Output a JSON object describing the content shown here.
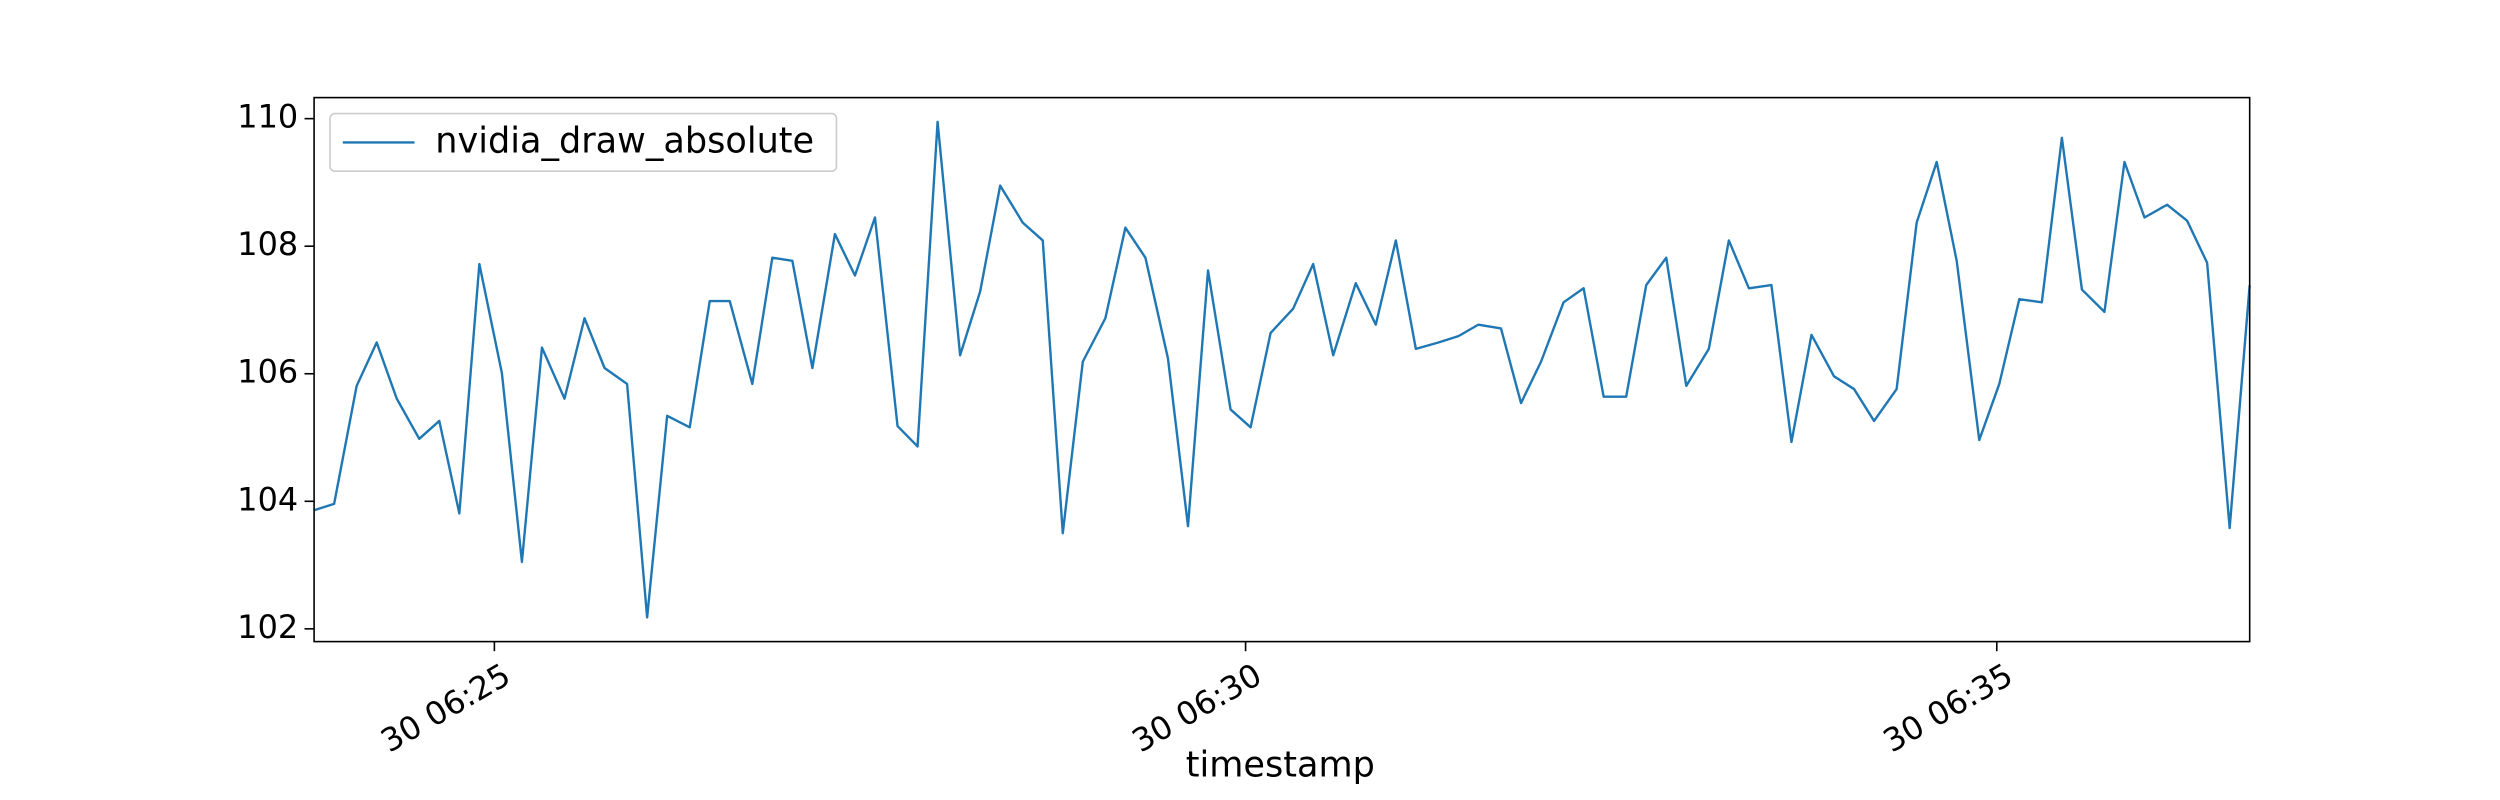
{
  "chart_data": {
    "type": "line",
    "xlabel": "timestamp",
    "x": [
      "30 06:23:48",
      "30 06:23:56",
      "30 06:24:05",
      "30 06:24:13",
      "30 06:24:21",
      "30 06:24:30",
      "30 06:24:38",
      "30 06:24:46",
      "30 06:24:54",
      "30 06:25:03",
      "30 06:25:11",
      "30 06:25:19",
      "30 06:25:28",
      "30 06:25:36",
      "30 06:25:44",
      "30 06:25:53",
      "30 06:26:01",
      "30 06:26:09",
      "30 06:26:18",
      "30 06:26:26",
      "30 06:26:34",
      "30 06:26:43",
      "30 06:26:51",
      "30 06:26:59",
      "30 06:27:07",
      "30 06:27:16",
      "30 06:27:24",
      "30 06:27:32",
      "30 06:27:41",
      "30 06:27:49",
      "30 06:27:57",
      "30 06:28:06",
      "30 06:28:14",
      "30 06:28:22",
      "30 06:28:31",
      "30 06:28:39",
      "30 06:28:47",
      "30 06:28:55",
      "30 06:29:04",
      "30 06:29:12",
      "30 06:29:20",
      "30 06:29:29",
      "30 06:29:37",
      "30 06:29:45",
      "30 06:29:54",
      "30 06:30:02",
      "30 06:30:10",
      "30 06:30:19",
      "30 06:30:27",
      "30 06:30:35",
      "30 06:30:44",
      "30 06:30:52",
      "30 06:31:00",
      "30 06:31:08",
      "30 06:31:17",
      "30 06:31:25",
      "30 06:31:33",
      "30 06:31:42",
      "30 06:31:50",
      "30 06:31:58",
      "30 06:32:07",
      "30 06:32:15",
      "30 06:32:23",
      "30 06:32:32",
      "30 06:32:40",
      "30 06:32:48",
      "30 06:32:56",
      "30 06:33:05",
      "30 06:33:13",
      "30 06:33:21",
      "30 06:33:30",
      "30 06:33:38",
      "30 06:33:46",
      "30 06:33:55",
      "30 06:34:03",
      "30 06:34:11",
      "30 06:34:20",
      "30 06:34:28",
      "30 06:34:36",
      "30 06:34:44",
      "30 06:34:53",
      "30 06:35:01",
      "30 06:35:09",
      "30 06:35:18",
      "30 06:35:26",
      "30 06:35:34",
      "30 06:35:43",
      "30 06:35:51",
      "30 06:35:59",
      "30 06:36:08",
      "30 06:36:16",
      "30 06:36:24",
      "30 06:36:33",
      "30 06:36:41"
    ],
    "series": [
      {
        "name": "nvidia_draw_absolute",
        "color": "#1f77b4",
        "values": [
          103.86,
          103.96,
          105.81,
          106.49,
          105.61,
          104.98,
          105.26,
          103.81,
          107.72,
          106.01,
          103.05,
          106.41,
          105.61,
          106.87,
          106.09,
          105.84,
          102.18,
          105.34,
          105.16,
          107.14,
          107.14,
          105.84,
          107.82,
          107.77,
          106.09,
          108.19,
          107.54,
          108.45,
          105.18,
          104.86,
          109.95,
          106.29,
          107.29,
          108.95,
          108.37,
          108.09,
          103.5,
          106.19,
          106.87,
          108.29,
          107.82,
          106.24,
          103.61,
          107.62,
          105.44,
          105.16,
          106.64,
          107.02,
          107.72,
          106.29,
          107.42,
          106.77,
          108.09,
          106.39,
          106.49,
          106.59,
          106.77,
          106.71,
          105.54,
          106.19,
          107.12,
          107.34,
          105.64,
          105.64,
          107.39,
          107.82,
          105.81,
          106.39,
          108.09,
          107.34,
          107.39,
          104.93,
          106.61,
          105.96,
          105.76,
          105.26,
          105.76,
          108.37,
          109.32,
          107.77,
          104.96,
          105.84,
          107.17,
          107.12,
          109.7,
          107.32,
          106.97,
          109.32,
          108.45,
          108.65,
          108.4,
          107.74,
          103.58,
          107.39
        ]
      }
    ],
    "xlim": [
      "30 06:23:48",
      "30 06:36:41"
    ],
    "xticks": [
      {
        "value": "30 06:25:00",
        "label": "30 06:25"
      },
      {
        "value": "30 06:30:00",
        "label": "30 06:30"
      },
      {
        "value": "30 06:35:00",
        "label": "30 06:35"
      }
    ],
    "ylim": [
      101.8,
      110.33
    ],
    "yticks": [
      102,
      104,
      106,
      108,
      110
    ],
    "legend": "upper left",
    "grid": false
  }
}
